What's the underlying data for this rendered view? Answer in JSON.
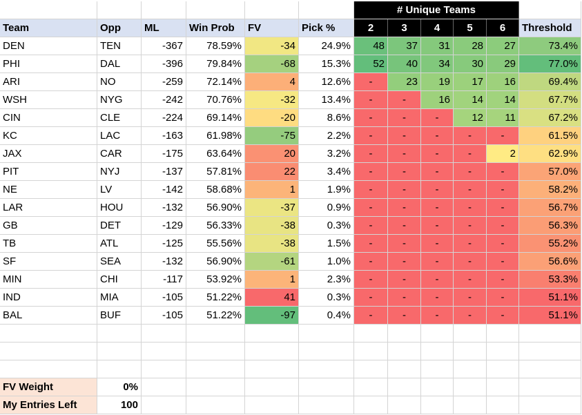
{
  "headers": {
    "group_title": "# Unique Teams",
    "team": "Team",
    "opp": "Opp",
    "ml": "ML",
    "win_prob": "Win Prob",
    "fv": "FV",
    "pick_pct": "Pick %",
    "unique_cols": [
      "2",
      "3",
      "4",
      "5",
      "6"
    ],
    "threshold": "Threshold"
  },
  "rows": [
    {
      "team": "DEN",
      "opp": "TEN",
      "ml": "-367",
      "win_prob": "78.59%",
      "fv": "-34",
      "pick": "24.9%",
      "u": [
        "48",
        "37",
        "31",
        "28",
        "27"
      ],
      "threshold": "73.4%"
    },
    {
      "team": "PHI",
      "opp": "DAL",
      "ml": "-396",
      "win_prob": "79.84%",
      "fv": "-68",
      "pick": "15.3%",
      "u": [
        "52",
        "40",
        "34",
        "30",
        "29"
      ],
      "threshold": "77.0%"
    },
    {
      "team": "ARI",
      "opp": "NO",
      "ml": "-259",
      "win_prob": "72.14%",
      "fv": "4",
      "pick": "12.6%",
      "u": [
        "-",
        "23",
        "19",
        "17",
        "16"
      ],
      "threshold": "69.4%"
    },
    {
      "team": "WSH",
      "opp": "NYG",
      "ml": "-242",
      "win_prob": "70.76%",
      "fv": "-32",
      "pick": "13.4%",
      "u": [
        "-",
        "-",
        "16",
        "14",
        "14"
      ],
      "threshold": "67.7%"
    },
    {
      "team": "CIN",
      "opp": "CLE",
      "ml": "-224",
      "win_prob": "69.14%",
      "fv": "-20",
      "pick": "8.6%",
      "u": [
        "-",
        "-",
        "-",
        "12",
        "11"
      ],
      "threshold": "67.2%"
    },
    {
      "team": "KC",
      "opp": "LAC",
      "ml": "-163",
      "win_prob": "61.98%",
      "fv": "-75",
      "pick": "2.2%",
      "u": [
        "-",
        "-",
        "-",
        "-",
        "-"
      ],
      "threshold": "61.5%"
    },
    {
      "team": "JAX",
      "opp": "CAR",
      "ml": "-175",
      "win_prob": "63.64%",
      "fv": "20",
      "pick": "3.2%",
      "u": [
        "-",
        "-",
        "-",
        "-",
        "2"
      ],
      "threshold": "62.9%"
    },
    {
      "team": "PIT",
      "opp": "NYJ",
      "ml": "-137",
      "win_prob": "57.81%",
      "fv": "22",
      "pick": "3.4%",
      "u": [
        "-",
        "-",
        "-",
        "-",
        "-"
      ],
      "threshold": "57.0%"
    },
    {
      "team": "NE",
      "opp": "LV",
      "ml": "-142",
      "win_prob": "58.68%",
      "fv": "1",
      "pick": "1.9%",
      "u": [
        "-",
        "-",
        "-",
        "-",
        "-"
      ],
      "threshold": "58.2%"
    },
    {
      "team": "LAR",
      "opp": "HOU",
      "ml": "-132",
      "win_prob": "56.90%",
      "fv": "-37",
      "pick": "0.9%",
      "u": [
        "-",
        "-",
        "-",
        "-",
        "-"
      ],
      "threshold": "56.7%"
    },
    {
      "team": "GB",
      "opp": "DET",
      "ml": "-129",
      "win_prob": "56.33%",
      "fv": "-38",
      "pick": "0.3%",
      "u": [
        "-",
        "-",
        "-",
        "-",
        "-"
      ],
      "threshold": "56.3%"
    },
    {
      "team": "TB",
      "opp": "ATL",
      "ml": "-125",
      "win_prob": "55.56%",
      "fv": "-38",
      "pick": "1.5%",
      "u": [
        "-",
        "-",
        "-",
        "-",
        "-"
      ],
      "threshold": "55.2%"
    },
    {
      "team": "SF",
      "opp": "SEA",
      "ml": "-132",
      "win_prob": "56.90%",
      "fv": "-61",
      "pick": "1.0%",
      "u": [
        "-",
        "-",
        "-",
        "-",
        "-"
      ],
      "threshold": "56.6%"
    },
    {
      "team": "MIN",
      "opp": "CHI",
      "ml": "-117",
      "win_prob": "53.92%",
      "fv": "1",
      "pick": "2.3%",
      "u": [
        "-",
        "-",
        "-",
        "-",
        "-"
      ],
      "threshold": "53.3%"
    },
    {
      "team": "IND",
      "opp": "MIA",
      "ml": "-105",
      "win_prob": "51.22%",
      "fv": "41",
      "pick": "0.3%",
      "u": [
        "-",
        "-",
        "-",
        "-",
        "-"
      ],
      "threshold": "51.1%"
    },
    {
      "team": "BAL",
      "opp": "BUF",
      "ml": "-105",
      "win_prob": "51.22%",
      "fv": "-97",
      "pick": "0.4%",
      "u": [
        "-",
        "-",
        "-",
        "-",
        "-"
      ],
      "threshold": "51.1%"
    }
  ],
  "settings": {
    "fv_weight_label": "FV Weight",
    "fv_weight_value": "0%",
    "entries_label": "My Entries Left",
    "entries_value": "100"
  },
  "colors": {
    "header_bg": "#d9e1f2",
    "black_header": "#000000",
    "label_bg": "#fce4d6",
    "gradient_red": "#f8696b",
    "gradient_yellow": "#ffeb84",
    "gradient_green": "#63be7b"
  }
}
